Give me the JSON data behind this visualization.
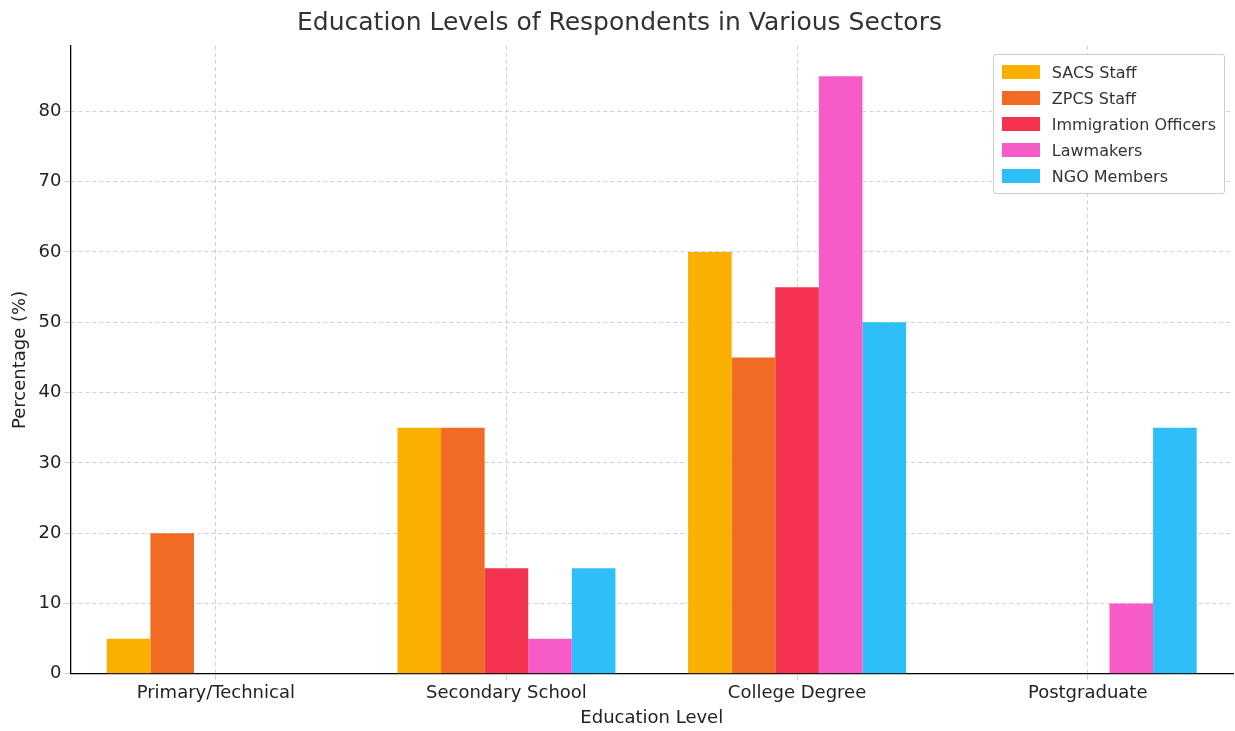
{
  "chart_data": {
    "type": "bar",
    "title": "Education Levels of Respondents in Various Sectors",
    "xlabel": "Education Level",
    "ylabel": "Percentage (%)",
    "categories": [
      "Primary/Technical",
      "Secondary School",
      "College Degree",
      "Postgraduate"
    ],
    "series": [
      {
        "name": "SACS Staff",
        "color": "#fbaf00",
        "values": [
          5,
          35,
          60,
          0
        ]
      },
      {
        "name": "ZPCS Staff",
        "color": "#f26b24",
        "values": [
          20,
          35,
          45,
          0
        ]
      },
      {
        "name": "Immigration Officers",
        "color": "#f43350",
        "values": [
          0,
          15,
          55,
          0
        ]
      },
      {
        "name": "Lawmakers",
        "color": "#f75bc7",
        "values": [
          0,
          5,
          85,
          10
        ]
      },
      {
        "name": "NGO Members",
        "color": "#2ebff9",
        "values": [
          0,
          15,
          50,
          35
        ]
      }
    ],
    "ylim": [
      0,
      89.3
    ],
    "yticks": [
      0,
      10,
      20,
      30,
      40,
      50,
      60,
      70,
      80
    ],
    "grid": true,
    "legend": "top right"
  }
}
